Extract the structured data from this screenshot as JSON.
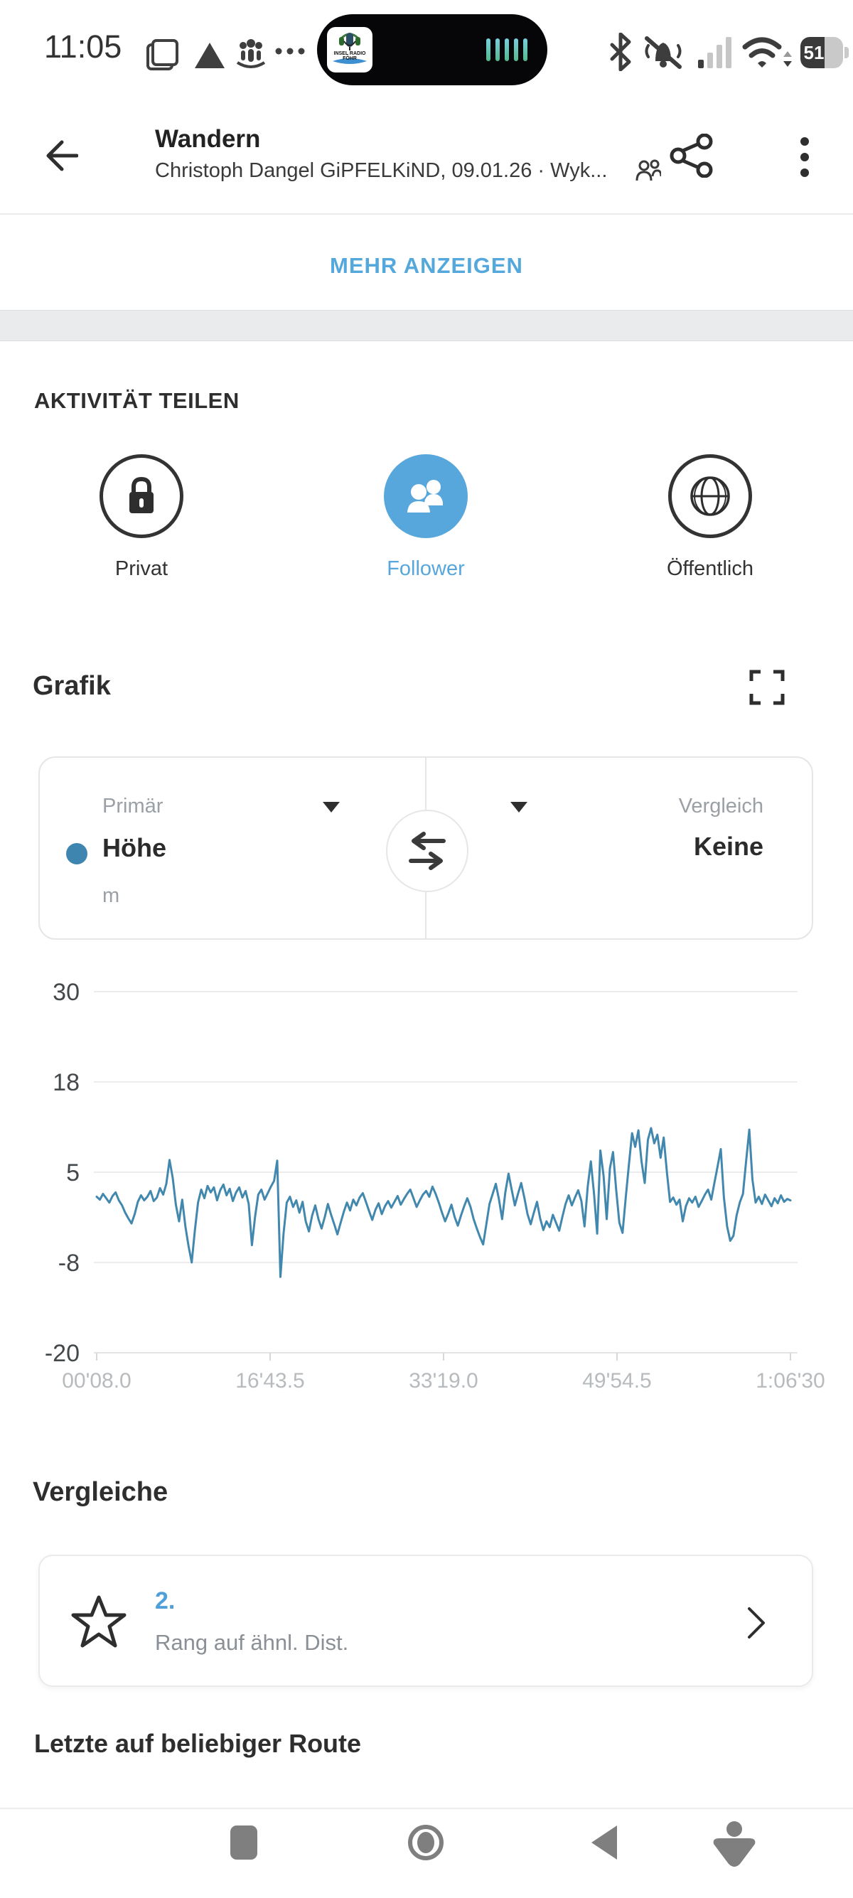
{
  "status_bar": {
    "time": "11:05",
    "battery_percent": "51",
    "media": {
      "station": "INSEL RADIO FÖHR"
    },
    "icons": [
      "floating-window-icon",
      "triangle-icon",
      "family-icon",
      "more-dots-icon",
      "bluetooth-icon",
      "mute-bell-icon",
      "signal-icon",
      "wifi-icon",
      "battery-icon"
    ]
  },
  "header": {
    "title": "Wandern",
    "subtitle": "Christoph Dangel GiPFELKiND, 09.01.26 · Wyk...",
    "show_more": "MEHR ANZEIGEN"
  },
  "share_section": {
    "heading": "AKTIVITÄT TEILEN",
    "selected": "Follower",
    "options": [
      {
        "label": "Privat",
        "icon": "lock-icon",
        "selected": false
      },
      {
        "label": "Follower",
        "icon": "people-icon",
        "selected": true
      },
      {
        "label": "Öffentlich",
        "icon": "globe-icon",
        "selected": false
      }
    ]
  },
  "graph_section": {
    "heading": "Grafik",
    "primary_label": "Primär",
    "primary_metric": "Höhe",
    "primary_unit": "m",
    "compare_label": "Vergleich",
    "compare_value": "Keine"
  },
  "chart_data": {
    "type": "line",
    "title": "Höhe (m)",
    "series_name": "Höhe",
    "ylabel": "m",
    "ylim": [
      -20,
      30
    ],
    "grid": true,
    "color": "#4288AE",
    "y_ticks": [
      "30",
      "18",
      "5",
      "-8",
      "-20"
    ],
    "y_tick_values": [
      30,
      18,
      5,
      -8,
      -20
    ],
    "x_ticks": [
      "00'08.0",
      "16'43.5",
      "33'19.0",
      "49'54.5",
      "1:06'30"
    ],
    "values": [
      1.6,
      1.2,
      2.0,
      1.4,
      0.8,
      1.7,
      2.2,
      1.1,
      0.4,
      -0.6,
      -1.4,
      -2.1,
      -0.8,
      0.9,
      1.8,
      1.1,
      1.6,
      2.4,
      1.0,
      1.5,
      2.8,
      1.9,
      3.4,
      6.7,
      4.2,
      0.5,
      -1.8,
      1.2,
      -2.5,
      -5.2,
      -7.5,
      -3.0,
      0.8,
      2.6,
      1.4,
      3.1,
      2.2,
      2.9,
      1.1,
      2.5,
      3.3,
      1.8,
      2.7,
      1.0,
      2.2,
      2.9,
      1.5,
      2.4,
      0.6,
      -5.1,
      -1.2,
      1.9,
      2.6,
      1.2,
      2.1,
      3.0,
      3.8,
      6.6,
      -9.5,
      -3.5,
      0.8,
      1.6,
      0.2,
      1.1,
      -0.6,
      0.9,
      -1.8,
      -3.2,
      -1.0,
      0.4,
      -1.5,
      -2.8,
      -1.2,
      0.6,
      -0.9,
      -2.2,
      -3.6,
      -2.0,
      -0.5,
      0.8,
      -0.3,
      1.2,
      0.4,
      1.5,
      2.1,
      0.9,
      -0.4,
      -1.6,
      -0.2,
      0.7,
      -0.8,
      0.3,
      1.0,
      0.1,
      0.9,
      1.7,
      0.5,
      1.3,
      2.0,
      2.6,
      1.4,
      0.2,
      1.1,
      1.9,
      2.4,
      1.6,
      3.0,
      2.0,
      0.8,
      -0.6,
      -1.8,
      -0.7,
      0.5,
      -1.2,
      -2.4,
      -1.0,
      0.3,
      1.4,
      0.2,
      -1.5,
      -2.8,
      -4.0,
      -5.0,
      -2.2,
      0.6,
      2.0,
      3.4,
      1.2,
      -1.5,
      2.2,
      4.8,
      2.6,
      0.4,
      2.0,
      3.5,
      1.5,
      -0.8,
      -2.2,
      -0.6,
      0.9,
      -1.4,
      -3.0,
      -1.8,
      -2.6,
      -0.9,
      -2.0,
      -3.1,
      -1.2,
      0.6,
      1.8,
      0.4,
      1.5,
      2.5,
      1.0,
      -2.5,
      3.0,
      6.5,
      2.0,
      -3.5,
      8.0,
      4.5,
      -1.5,
      5.5,
      7.8,
      2.5,
      -2.0,
      -3.4,
      1.5,
      6.0,
      10.4,
      8.5,
      10.8,
      6.5,
      3.5,
      9.5,
      11.1,
      9.0,
      10.2,
      7.0,
      9.8,
      5.0,
      0.9,
      1.5,
      0.5,
      1.2,
      -1.8,
      0.3,
      1.4,
      0.8,
      1.6,
      0.2,
      1.0,
      1.9,
      2.6,
      1.2,
      3.5,
      5.8,
      8.2,
      1.5,
      -2.5,
      -4.5,
      -3.8,
      -1.0,
      0.8,
      2.0,
      6.5,
      10.9,
      4.0,
      0.8,
      1.6,
      0.6,
      1.9,
      1.1,
      0.3,
      1.4,
      0.7,
      1.8,
      0.9,
      1.3,
      1.1
    ]
  },
  "compare_section": {
    "heading": "Vergleiche",
    "rank": "2.",
    "rank_label": "Rang auf ähnl. Dist."
  },
  "routes_section": {
    "heading": "Letzte auf beliebiger Route"
  },
  "colors": {
    "accent_blue": "#55A8DC",
    "follower_circle_blue": "#57A7DC",
    "chart_line_blue": "#4288AE",
    "metric_dot_blue": "#3E86B0",
    "rank_blue": "#4FA0D8"
  }
}
